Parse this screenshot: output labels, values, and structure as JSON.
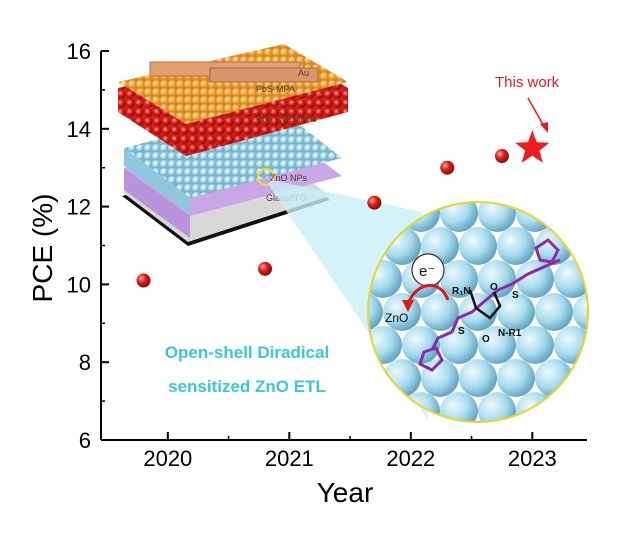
{
  "chart_data": {
    "type": "scatter",
    "title": "",
    "xlabel": "Year",
    "ylabel": "PCE (%)",
    "xlim": [
      2019.45,
      2023.45
    ],
    "ylim": [
      6,
      16
    ],
    "xticks": [
      "2020",
      "2021",
      "2022",
      "2023"
    ],
    "yticks": [
      "6",
      "8",
      "10",
      "12",
      "14",
      "16"
    ],
    "grid": false,
    "points": [
      {
        "x": 2019.8,
        "y": 10.1
      },
      {
        "x": 2020.8,
        "y": 10.4
      },
      {
        "x": 2021.7,
        "y": 12.1
      },
      {
        "x": 2022.3,
        "y": 13.0
      },
      {
        "x": 2022.75,
        "y": 13.3
      }
    ],
    "highlight": {
      "x": 2023.0,
      "y": 13.5,
      "label": "This work"
    },
    "annotation": [
      "Open-shell Diradical",
      "sensitized ZnO ETL"
    ]
  },
  "device_layers": [
    "Au",
    "PbS-MPA",
    "PbS CQD films",
    "ZnO NPs",
    "Glass/ITO"
  ],
  "inset_labels": {
    "electron": "e⁻",
    "zno": "ZnO",
    "n1": "R₁N",
    "n2": "N-R1",
    "s": "S",
    "o": "O"
  },
  "colors": {
    "point": "#e3201b",
    "star": "#ee1c1c",
    "callout": "#3cc8d2",
    "sphere": "#a8dcee"
  }
}
